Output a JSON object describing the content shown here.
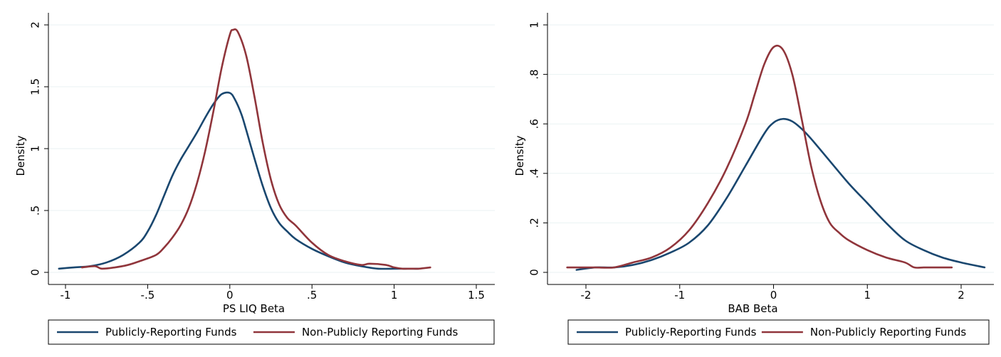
{
  "chart_data": [
    {
      "type": "line",
      "xlabel": "PS LIQ Beta",
      "ylabel": "Density",
      "xlim": [
        -1.05,
        1.55
      ],
      "ylim": [
        0,
        2.05
      ],
      "xticks": [
        -1,
        -0.5,
        0,
        0.5,
        1,
        1.5
      ],
      "xtick_labels": [
        "-1",
        "-.5",
        "0",
        ".5",
        "1",
        "1.5"
      ],
      "yticks": [
        0,
        0.5,
        1,
        1.5,
        2
      ],
      "ytick_labels": [
        "0",
        ".5",
        "1",
        "1.5",
        "2"
      ],
      "grid": true,
      "legend_position": "bottom",
      "series": [
        {
          "name": "Publicly-Reporting Funds",
          "color": "#1a476f",
          "x": [
            -1.04,
            -0.95,
            -0.85,
            -0.75,
            -0.65,
            -0.55,
            -0.5,
            -0.45,
            -0.4,
            -0.35,
            -0.3,
            -0.25,
            -0.2,
            -0.15,
            -0.1,
            -0.05,
            0.0,
            0.03,
            0.07,
            0.1,
            0.15,
            0.2,
            0.25,
            0.3,
            0.35,
            0.4,
            0.5,
            0.6,
            0.7,
            0.8,
            0.9,
            1.0,
            1.1,
            1.15
          ],
          "y": [
            0.03,
            0.04,
            0.05,
            0.08,
            0.14,
            0.24,
            0.33,
            0.46,
            0.62,
            0.78,
            0.91,
            1.02,
            1.13,
            1.25,
            1.36,
            1.44,
            1.45,
            1.4,
            1.28,
            1.15,
            0.92,
            0.7,
            0.52,
            0.4,
            0.33,
            0.27,
            0.19,
            0.13,
            0.08,
            0.05,
            0.03,
            0.03,
            0.03,
            0.03
          ]
        },
        {
          "name": "Non-Publicly Reporting Funds",
          "color": "#90353b",
          "x": [
            -0.9,
            -0.82,
            -0.78,
            -0.7,
            -0.62,
            -0.55,
            -0.45,
            -0.4,
            -0.35,
            -0.3,
            -0.25,
            -0.2,
            -0.15,
            -0.1,
            -0.05,
            0.0,
            0.02,
            0.05,
            0.1,
            0.15,
            0.2,
            0.25,
            0.3,
            0.35,
            0.4,
            0.5,
            0.6,
            0.7,
            0.8,
            0.85,
            0.95,
            1.0,
            1.05,
            1.1,
            1.15,
            1.22
          ],
          "y": [
            0.04,
            0.05,
            0.03,
            0.04,
            0.06,
            0.09,
            0.14,
            0.2,
            0.28,
            0.38,
            0.52,
            0.72,
            0.98,
            1.3,
            1.65,
            1.92,
            1.96,
            1.94,
            1.75,
            1.42,
            1.05,
            0.75,
            0.55,
            0.44,
            0.38,
            0.24,
            0.14,
            0.09,
            0.06,
            0.07,
            0.06,
            0.04,
            0.03,
            0.03,
            0.03,
            0.04
          ]
        }
      ]
    },
    {
      "type": "line",
      "xlabel": "BAB Beta",
      "ylabel": "Density",
      "xlim": [
        -2.35,
        2.35
      ],
      "ylim": [
        0,
        1.0
      ],
      "xticks": [
        -2,
        -1,
        0,
        1,
        2
      ],
      "xtick_labels": [
        "-2",
        "-1",
        "0",
        "1",
        "2"
      ],
      "yticks": [
        0,
        0.2,
        0.4,
        0.6,
        0.8,
        1
      ],
      "ytick_labels": [
        "0",
        ".2",
        ".4",
        ".6",
        ".8",
        "1"
      ],
      "grid": true,
      "legend_position": "bottom",
      "series": [
        {
          "name": "Publicly-Reporting Funds",
          "color": "#1a476f",
          "x": [
            -2.1,
            -1.9,
            -1.7,
            -1.5,
            -1.3,
            -1.1,
            -0.9,
            -0.7,
            -0.5,
            -0.3,
            -0.1,
            0.0,
            0.1,
            0.2,
            0.3,
            0.4,
            0.6,
            0.8,
            1.0,
            1.2,
            1.4,
            1.6,
            1.8,
            2.0,
            2.25
          ],
          "y": [
            0.01,
            0.02,
            0.02,
            0.03,
            0.05,
            0.08,
            0.12,
            0.19,
            0.3,
            0.43,
            0.56,
            0.605,
            0.62,
            0.61,
            0.58,
            0.54,
            0.45,
            0.36,
            0.28,
            0.2,
            0.13,
            0.09,
            0.06,
            0.04,
            0.02
          ]
        },
        {
          "name": "Non-Publicly Reporting Funds",
          "color": "#90353b",
          "x": [
            -2.2,
            -2.05,
            -1.9,
            -1.7,
            -1.5,
            -1.3,
            -1.1,
            -0.9,
            -0.7,
            -0.5,
            -0.3,
            -0.2,
            -0.1,
            0.0,
            0.1,
            0.2,
            0.3,
            0.4,
            0.5,
            0.6,
            0.7,
            0.8,
            1.0,
            1.2,
            1.4,
            1.5,
            1.6,
            1.7,
            1.9
          ],
          "y": [
            0.02,
            0.02,
            0.02,
            0.02,
            0.04,
            0.06,
            0.1,
            0.17,
            0.28,
            0.42,
            0.6,
            0.72,
            0.84,
            0.91,
            0.9,
            0.8,
            0.62,
            0.43,
            0.29,
            0.2,
            0.16,
            0.13,
            0.09,
            0.06,
            0.04,
            0.02,
            0.02,
            0.02,
            0.02
          ]
        }
      ]
    }
  ]
}
